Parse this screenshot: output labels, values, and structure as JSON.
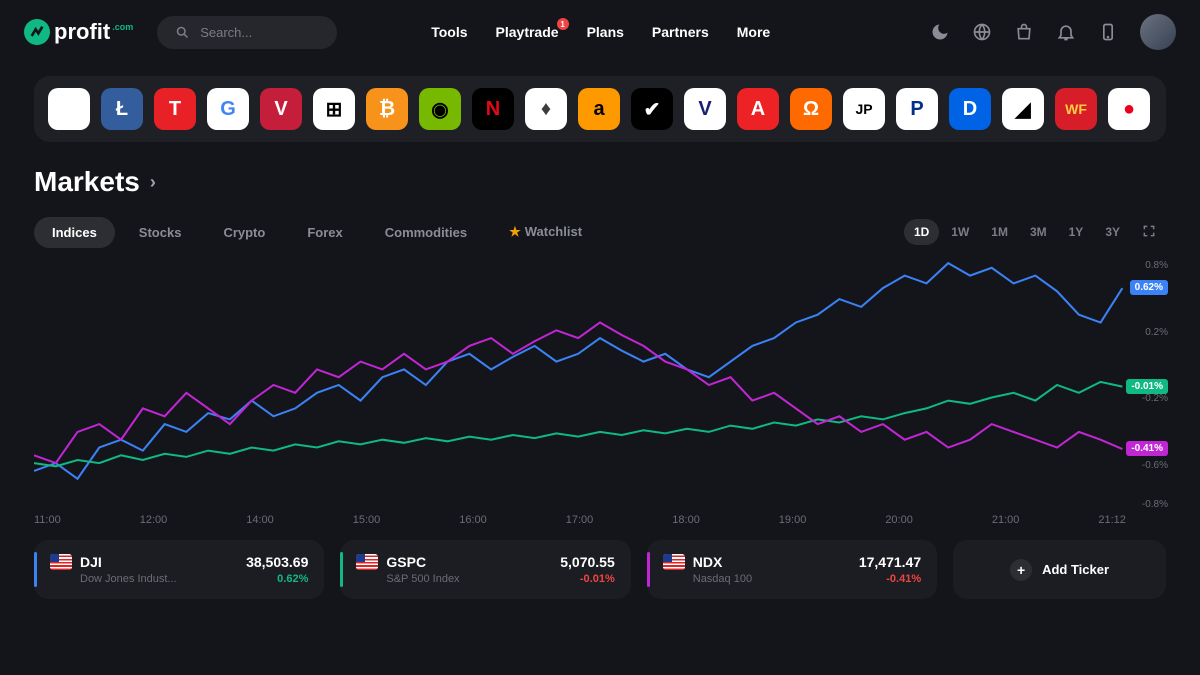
{
  "header": {
    "logo_text": "profit",
    "logo_suffix": ".com",
    "search_placeholder": "Search...",
    "nav": [
      {
        "label": "Tools"
      },
      {
        "label": "Playtrade",
        "badge": "1"
      },
      {
        "label": "Plans"
      },
      {
        "label": "Partners"
      },
      {
        "label": "More"
      }
    ]
  },
  "ticker_strip": [
    {
      "name": "apple",
      "bg": "#ffffff",
      "fg": "#000",
      "glyph": ""
    },
    {
      "name": "litecoin",
      "bg": "#345d9d",
      "fg": "#fff",
      "glyph": "Ł"
    },
    {
      "name": "tesla",
      "bg": "#e82127",
      "fg": "#fff",
      "glyph": "T"
    },
    {
      "name": "google",
      "bg": "#ffffff",
      "fg": "#4285f4",
      "glyph": "G"
    },
    {
      "name": "vanguard",
      "bg": "#c41e3a",
      "fg": "#fff",
      "glyph": "V"
    },
    {
      "name": "microsoft",
      "bg": "#ffffff",
      "fg": "#000",
      "glyph": "⊞"
    },
    {
      "name": "bitcoin",
      "bg": "#f7931a",
      "fg": "#fff",
      "glyph": "₿"
    },
    {
      "name": "nvidia",
      "bg": "#76b900",
      "fg": "#000",
      "glyph": "◉"
    },
    {
      "name": "netflix",
      "bg": "#000000",
      "fg": "#e50914",
      "glyph": "N"
    },
    {
      "name": "ethereum",
      "bg": "#ffffff",
      "fg": "#3c3c3d",
      "glyph": "♦"
    },
    {
      "name": "amazon",
      "bg": "#ff9900",
      "fg": "#000",
      "glyph": "a"
    },
    {
      "name": "nike",
      "bg": "#000000",
      "fg": "#fff",
      "glyph": "✔"
    },
    {
      "name": "visa",
      "bg": "#ffffff",
      "fg": "#1a1f71",
      "glyph": "V"
    },
    {
      "name": "adobe",
      "bg": "#ed2224",
      "fg": "#fff",
      "glyph": "A"
    },
    {
      "name": "alibaba",
      "bg": "#ff6a00",
      "fg": "#fff",
      "glyph": "Ω"
    },
    {
      "name": "jpmorgan",
      "bg": "#ffffff",
      "fg": "#000",
      "glyph": "JP"
    },
    {
      "name": "paypal",
      "bg": "#ffffff",
      "fg": "#003087",
      "glyph": "P"
    },
    {
      "name": "disney",
      "bg": "#0063e5",
      "fg": "#fff",
      "glyph": "D"
    },
    {
      "name": "amd",
      "bg": "#ffffff",
      "fg": "#000",
      "glyph": "◢"
    },
    {
      "name": "wellsfargo",
      "bg": "#d71e28",
      "fg": "#ffcd41",
      "glyph": "WF"
    },
    {
      "name": "mastercard",
      "bg": "#ffffff",
      "fg": "#eb001b",
      "glyph": "●"
    }
  ],
  "page_title": "Markets",
  "market_tabs": [
    {
      "label": "Indices",
      "active": true
    },
    {
      "label": "Stocks"
    },
    {
      "label": "Crypto"
    },
    {
      "label": "Forex"
    },
    {
      "label": "Commodities"
    },
    {
      "label": "Watchlist",
      "star": true
    }
  ],
  "timeframes": [
    {
      "label": "1D",
      "active": true
    },
    {
      "label": "1W"
    },
    {
      "label": "1M"
    },
    {
      "label": "3M"
    },
    {
      "label": "1Y"
    },
    {
      "label": "3Y"
    }
  ],
  "chart": {
    "type": "line",
    "y_labels": [
      "0.8%",
      "",
      "0.2%",
      "",
      "-0.2%",
      "",
      "-0.6%",
      "-0.8%"
    ],
    "y_range": [
      -0.8,
      0.8
    ],
    "x_labels": [
      "11:00",
      "12:00",
      "14:00",
      "15:00",
      "16:00",
      "17:00",
      "18:00",
      "19:00",
      "20:00",
      "21:00",
      "21:12"
    ],
    "series": [
      {
        "name": "DJI",
        "color": "#3b82f6",
        "badge": "0.62%",
        "badge_bg": "#3b82f6",
        "badge_y": 0.62,
        "data": [
          -0.55,
          -0.5,
          -0.6,
          -0.4,
          -0.35,
          -0.42,
          -0.25,
          -0.3,
          -0.18,
          -0.22,
          -0.1,
          -0.2,
          -0.15,
          -0.05,
          0,
          -0.1,
          0.05,
          0.1,
          0,
          0.15,
          0.2,
          0.1,
          0.18,
          0.25,
          0.15,
          0.2,
          0.3,
          0.22,
          0.15,
          0.2,
          0.1,
          0.05,
          0.15,
          0.25,
          0.3,
          0.4,
          0.45,
          0.55,
          0.5,
          0.62,
          0.7,
          0.65,
          0.78,
          0.7,
          0.75,
          0.65,
          0.7,
          0.6,
          0.45,
          0.4,
          0.62
        ]
      },
      {
        "name": "GSPC",
        "color": "#10b981",
        "badge": "-0.01%",
        "badge_bg": "#10b981",
        "badge_y": -0.01,
        "data": [
          -0.5,
          -0.52,
          -0.48,
          -0.5,
          -0.45,
          -0.48,
          -0.44,
          -0.46,
          -0.42,
          -0.44,
          -0.4,
          -0.42,
          -0.38,
          -0.4,
          -0.36,
          -0.38,
          -0.35,
          -0.37,
          -0.34,
          -0.36,
          -0.33,
          -0.35,
          -0.32,
          -0.34,
          -0.31,
          -0.33,
          -0.3,
          -0.32,
          -0.29,
          -0.31,
          -0.28,
          -0.3,
          -0.26,
          -0.28,
          -0.24,
          -0.26,
          -0.22,
          -0.24,
          -0.2,
          -0.22,
          -0.18,
          -0.15,
          -0.1,
          -0.12,
          -0.08,
          -0.05,
          -0.1,
          0,
          -0.05,
          0.02,
          -0.01
        ]
      },
      {
        "name": "NDX",
        "color": "#c026d3",
        "badge": "-0.41%",
        "badge_bg": "#c026d3",
        "badge_y": -0.41,
        "data": [
          -0.45,
          -0.5,
          -0.3,
          -0.25,
          -0.35,
          -0.15,
          -0.2,
          -0.05,
          -0.15,
          -0.25,
          -0.1,
          0,
          -0.05,
          0.1,
          0.05,
          0.15,
          0.1,
          0.2,
          0.1,
          0.15,
          0.25,
          0.3,
          0.2,
          0.28,
          0.35,
          0.3,
          0.4,
          0.32,
          0.25,
          0.15,
          0.1,
          0,
          0.05,
          -0.1,
          -0.05,
          -0.15,
          -0.25,
          -0.2,
          -0.3,
          -0.25,
          -0.35,
          -0.3,
          -0.4,
          -0.35,
          -0.25,
          -0.3,
          -0.35,
          -0.4,
          -0.3,
          -0.35,
          -0.41
        ]
      }
    ]
  },
  "ticker_cards": [
    {
      "accent": "blue",
      "symbol": "DJI",
      "name": "Dow Jones Indust...",
      "price": "38,503.69",
      "change": "0.62%",
      "dir": "pos"
    },
    {
      "accent": "green",
      "symbol": "GSPC",
      "name": "S&P 500 Index",
      "price": "5,070.55",
      "change": "-0.01%",
      "dir": "neg"
    },
    {
      "accent": "purple",
      "symbol": "NDX",
      "name": "Nasdaq 100",
      "price": "17,471.47",
      "change": "-0.41%",
      "dir": "neg"
    }
  ],
  "add_ticker_label": "Add Ticker"
}
